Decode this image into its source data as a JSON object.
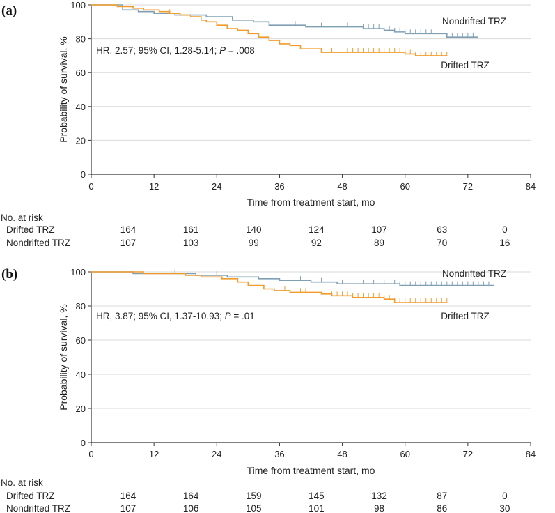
{
  "colors": {
    "drifted": "#F29B2B",
    "nondrifted": "#7FA0B4",
    "grid": "#D9D9D9",
    "axis": "#333333"
  },
  "chart_data": [
    {
      "panel": "(a)",
      "type": "line",
      "title": "",
      "xlabel": "Time from treatment start, mo",
      "ylabel": "Probability of survival, %",
      "xlim": [
        0,
        84
      ],
      "ylim": [
        0,
        100
      ],
      "xticks": [
        0,
        12,
        24,
        36,
        48,
        60,
        72,
        84
      ],
      "yticks": [
        0,
        20,
        40,
        60,
        80,
        100
      ],
      "grid": "horizontal",
      "annotation": {
        "prefix": "HR, 2.57; 95% CI, 1.28-5.14; ",
        "p_label": "P",
        "suffix": " = .008"
      },
      "series": [
        {
          "name": "Nondrifted TRZ",
          "color": "#7FA0B4",
          "x": [
            0,
            6,
            9,
            12,
            16,
            22,
            27,
            31,
            34,
            41,
            47,
            52,
            56,
            58,
            60,
            62,
            65,
            68,
            74
          ],
          "y": [
            100,
            97,
            96,
            95,
            94,
            93,
            91,
            90,
            88,
            87,
            87,
            86,
            85,
            84,
            83,
            83,
            83,
            81,
            81
          ],
          "censor_x": [
            39,
            44,
            49,
            52,
            53,
            54,
            55,
            57,
            58,
            59,
            60,
            61,
            62,
            63,
            64,
            65,
            69,
            70,
            71,
            72,
            73
          ]
        },
        {
          "name": "Drifted TRZ",
          "color": "#F29B2B",
          "x": [
            0,
            5,
            8,
            10,
            13,
            15,
            17,
            19,
            21,
            22,
            24,
            26,
            28,
            30,
            32,
            34,
            36,
            38,
            40,
            44,
            50,
            56,
            60,
            62,
            66,
            68
          ],
          "y": [
            100,
            99,
            98,
            97,
            96,
            95,
            94,
            93,
            91,
            90,
            88,
            86,
            85,
            83,
            81,
            79,
            77,
            76,
            74,
            72,
            72,
            72,
            71,
            70,
            70,
            70
          ],
          "censor_x": [
            15,
            36,
            38,
            42,
            44,
            46,
            49,
            50,
            51,
            52,
            53,
            54,
            55,
            56,
            57,
            58,
            59,
            60,
            61,
            62,
            63,
            64,
            65,
            66,
            67,
            68
          ]
        }
      ],
      "risk_table": {
        "header": "No. at risk",
        "rows": [
          {
            "label": "Drifted TRZ",
            "values": [
              "164",
              "161",
              "140",
              "124",
              "107",
              "63",
              "0"
            ]
          },
          {
            "label": "Nondrifted TRZ",
            "values": [
              "107",
              "103",
              "99",
              "92",
              "89",
              "70",
              "16"
            ]
          }
        ]
      }
    },
    {
      "panel": "(b)",
      "type": "line",
      "title": "",
      "xlabel": "Time from treatment start, mo",
      "ylabel": "Probability of survival, %",
      "xlim": [
        0,
        84
      ],
      "ylim": [
        0,
        100
      ],
      "xticks": [
        0,
        12,
        24,
        36,
        48,
        60,
        72,
        84
      ],
      "yticks": [
        0,
        20,
        40,
        60,
        80,
        100
      ],
      "grid": "horizontal",
      "annotation": {
        "prefix": "HR, 3.87; 95% CI, 1.37-10.93; ",
        "p_label": "P",
        "suffix": " = .01"
      },
      "series": [
        {
          "name": "Nondrifted TRZ",
          "color": "#7FA0B4",
          "x": [
            0,
            8,
            14,
            20,
            26,
            32,
            36,
            42,
            47,
            52,
            58,
            59,
            77
          ],
          "y": [
            100,
            99,
            99,
            98,
            97,
            96,
            95,
            94,
            93,
            93,
            93,
            92,
            92
          ],
          "censor_x": [
            16,
            24,
            40,
            44,
            48,
            52,
            54,
            56,
            58,
            59,
            60,
            61,
            62,
            63,
            64,
            65,
            66,
            67,
            68,
            69,
            70,
            71,
            72,
            73,
            74,
            75,
            76
          ]
        },
        {
          "name": "Drifted TRZ",
          "color": "#F29B2B",
          "x": [
            0,
            10,
            14,
            18,
            21,
            25,
            28,
            30,
            33,
            35,
            38,
            44,
            46,
            50,
            56,
            58,
            68
          ],
          "y": [
            100,
            99,
            99,
            98,
            97,
            96,
            94,
            92,
            90,
            89,
            88,
            87,
            86,
            85,
            84,
            82,
            82
          ],
          "censor_x": [
            37,
            38,
            40,
            41,
            46,
            47,
            48,
            49,
            50,
            51,
            52,
            53,
            54,
            55,
            56,
            57,
            58,
            59,
            60,
            61,
            62,
            63,
            64,
            65,
            66,
            67,
            68
          ]
        }
      ],
      "risk_table": {
        "header": "No. at risk",
        "rows": [
          {
            "label": "Drifted TRZ",
            "values": [
              "164",
              "164",
              "159",
              "145",
              "132",
              "87",
              "0"
            ]
          },
          {
            "label": "Nondrifted TRZ",
            "values": [
              "107",
              "106",
              "105",
              "101",
              "98",
              "86",
              "30"
            ]
          }
        ]
      }
    }
  ]
}
